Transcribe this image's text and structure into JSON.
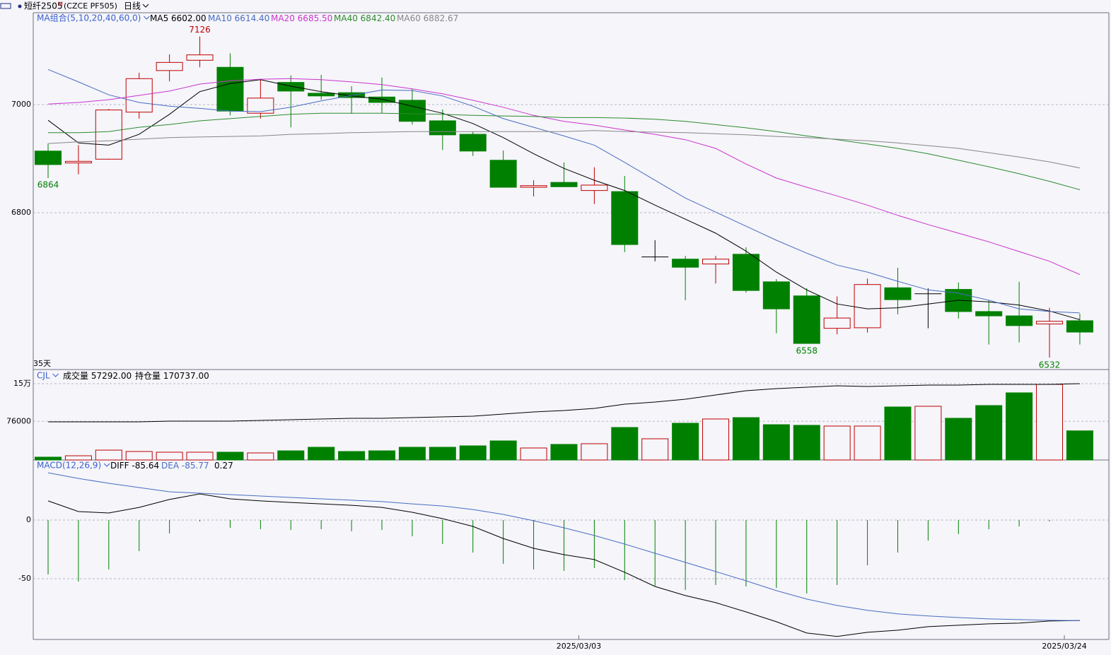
{
  "header": {
    "symbol": "短纤2505",
    "mark": "M",
    "code": "(CZCE PF505)",
    "period": "日线"
  },
  "chart_data": [
    {
      "type": "candlestick",
      "legend_title": "MA组合(5,10,20,40,60,0)",
      "period_label": "35天",
      "categories": [
        null,
        null,
        null,
        null,
        null,
        null,
        null,
        null,
        null,
        null,
        null,
        null,
        null,
        null,
        null,
        null,
        null,
        "2025/03/03",
        null,
        null,
        null,
        null,
        null,
        null,
        null,
        null,
        null,
        null,
        null,
        null,
        null,
        null,
        null,
        "2025/03/24",
        null
      ],
      "open": [
        6914,
        6892,
        6899,
        6986,
        7063,
        7082,
        7069,
        6984,
        7041,
        7021,
        7022,
        7014,
        7008,
        6970,
        6945,
        6897,
        6847,
        6856,
        6841,
        6839,
        6718,
        6714,
        6705,
        6723,
        6672,
        6646,
        6586,
        6587,
        6661,
        6650,
        6658,
        6617,
        6609,
        6594,
        6600
      ],
      "high": [
        6928,
        6925,
        6992,
        7059,
        7093,
        7126,
        7095,
        7047,
        7054,
        7055,
        7034,
        7050,
        7029,
        6991,
        6950,
        6915,
        6860,
        6893,
        6884,
        6868,
        6749,
        6720,
        6720,
        6736,
        6677,
        6660,
        6645,
        6678,
        6698,
        6660,
        6671,
        6638,
        6672,
        6624,
        6613
      ],
      "low": [
        6864,
        6871,
        6898,
        6974,
        7043,
        7069,
        6980,
        6974,
        6958,
        7009,
        6983,
        6984,
        6963,
        6916,
        6905,
        6847,
        6830,
        6848,
        6816,
        6727,
        6710,
        6638,
        6669,
        6652,
        6577,
        6558,
        6575,
        6578,
        6612,
        6586,
        6604,
        6556,
        6560,
        6532,
        6556
      ],
      "close": [
        6889,
        6895,
        6990,
        7048,
        7078,
        7092,
        6988,
        7012,
        7025,
        7016,
        7013,
        7004,
        6969,
        6944,
        6914,
        6847,
        6850,
        6848,
        6851,
        6741,
        6718,
        6699,
        6714,
        6656,
        6622,
        6558,
        6605,
        6667,
        6639,
        6650,
        6617,
        6609,
        6591,
        6599,
        6579
      ],
      "up_color": "#c00000",
      "down_color": "#008000",
      "flat_color": "#000000",
      "series": [
        {
          "name": "MA5",
          "last_label": "6602.00",
          "color": "#000000",
          "values": [
            6971,
            6929,
            6925,
            6945,
            6982,
            7024,
            7039,
            7046,
            7034,
            7024,
            7016,
            7010,
            6997,
            6984,
            6965,
            6939,
            6909,
            6882,
            6860,
            6841,
            6814,
            6788,
            6762,
            6729,
            6690,
            6657,
            6631,
            6622,
            6624,
            6631,
            6638,
            6635,
            6629,
            6618,
            6602
          ]
        },
        {
          "name": "MA10",
          "last_label": "6614.40",
          "color": "#4a6cc0",
          "values": [
            7065,
            7042,
            7018,
            7004,
            6997,
            6993,
            6988,
            6987,
            6995,
            7007,
            7017,
            7027,
            7026,
            7016,
            6997,
            6974,
            6958,
            6942,
            6925,
            6893,
            6860,
            6827,
            6801,
            6775,
            6749,
            6725,
            6703,
            6690,
            6673,
            6657,
            6651,
            6638,
            6622,
            6617,
            6614.4
          ]
        },
        {
          "name": "MA20",
          "last_label": "6685.50",
          "color": "#cc33cc",
          "values": [
            7001,
            7004,
            7009,
            7017,
            7025,
            7038,
            7044,
            7047,
            7048,
            7046,
            7042,
            7037,
            7029,
            7020,
            7008,
            6995,
            6980,
            6969,
            6962,
            6953,
            6945,
            6935,
            6919,
            6890,
            6864,
            6847,
            6831,
            6814,
            6795,
            6778,
            6762,
            6746,
            6728,
            6710,
            6685.5
          ]
        },
        {
          "name": "MA40",
          "last_label": "6842.40",
          "color": "#2e8b2e",
          "values": [
            6948,
            6948,
            6950,
            6958,
            6963,
            6970,
            6974,
            6978,
            6982,
            6984,
            6984,
            6984,
            6983,
            6982,
            6980,
            6979,
            6978,
            6976,
            6976,
            6975,
            6973,
            6969,
            6963,
            6957,
            6950,
            6942,
            6935,
            6927,
            6919,
            6909,
            6897,
            6885,
            6872,
            6858,
            6842.4
          ]
        },
        {
          "name": "MA60",
          "last_label": "6882.67",
          "color": "#888888",
          "values": [
            6928,
            6931,
            6933,
            6936,
            6939,
            6940,
            6941,
            6942,
            6945,
            6946,
            6948,
            6949,
            6950,
            6950,
            6950,
            6950,
            6950,
            6950,
            6952,
            6950,
            6949,
            6948,
            6946,
            6944,
            6941,
            6939,
            6936,
            6933,
            6929,
            6924,
            6919,
            6911,
            6903,
            6894,
            6882.67
          ]
        }
      ],
      "ylim": [
        6511,
        7170
      ],
      "yticks": [
        6800,
        7000
      ],
      "grid": true
    },
    {
      "type": "bar",
      "legend_title": "CJL",
      "series": [
        {
          "name": "成交量",
          "last_label": "57292.00",
          "type": "bar",
          "color": "#000000",
          "values": [
            5600,
            8300,
            19400,
            16700,
            15300,
            15300,
            15300,
            13900,
            18000,
            25000,
            16700,
            18000,
            25000,
            25000,
            27800,
            37500,
            23600,
            30600,
            32000,
            63900,
            41700,
            72200,
            80600,
            83300,
            69400,
            68100,
            66700,
            66700,
            104200,
            105600,
            82000,
            107000,
            132000,
            148600,
            57292
          ]
        },
        {
          "name": "持仓量",
          "last_label": "170737.00",
          "axis": "y2",
          "color": "#000000",
          "values": [
            85370,
            85370,
            85370,
            85370,
            86960,
            86960,
            86960,
            88540,
            90120,
            91700,
            93280,
            93280,
            94860,
            96440,
            98020,
            102770,
            107510,
            110670,
            115410,
            124900,
            129640,
            135970,
            145450,
            154940,
            159680,
            162840,
            166010,
            164420,
            166010,
            167590,
            167590,
            169170,
            169170,
            169170,
            170737
          ]
        }
      ],
      "ylim": [
        0,
        175000
      ],
      "yticks": [
        76000,
        {
          "value": 150000,
          "label": "15万"
        }
      ],
      "y2lim": [
        0,
        199200
      ],
      "grid": true
    },
    {
      "type": "macd",
      "legend_title": "MACD(12,26,9)",
      "up_color": "#c00000",
      "down_color": "#008000",
      "series": [
        {
          "name": "DIFF",
          "last_label": "-85.64",
          "color": "#000000",
          "values": [
            16.3,
            7.2,
            6,
            10.8,
            17.5,
            22.3,
            18.1,
            16.3,
            15,
            13.8,
            12.6,
            10.8,
            6.6,
            1.2,
            -5.4,
            -15.7,
            -24.1,
            -29.5,
            -33.7,
            -44.5,
            -56.6,
            -64.4,
            -70.4,
            -78.3,
            -86.7,
            -96.3,
            -99.3,
            -95.7,
            -93.9,
            -90.9,
            -89.7,
            -88.5,
            -87.9,
            -86.1,
            -85.64
          ]
        },
        {
          "name": "DEA",
          "last_label": "-85.77",
          "color": "#4a6cc0",
          "values": [
            40.3,
            35.5,
            31.3,
            27.7,
            24.1,
            22.9,
            21.7,
            20.5,
            19.3,
            18.1,
            16.9,
            15.7,
            13.8,
            12,
            9,
            4.8,
            -0.6,
            -6.6,
            -13.2,
            -20.5,
            -28.3,
            -36.1,
            -43.9,
            -51.8,
            -60.2,
            -67.4,
            -72.8,
            -77,
            -80,
            -81.8,
            -83.1,
            -84.3,
            -84.9,
            -85.5,
            -85.77
          ]
        },
        {
          "last_label": "0.27",
          "type": "bar",
          "color": "#000000",
          "values": [
            -46.4,
            -52.4,
            -42.1,
            -26.5,
            -11.4,
            -1.2,
            -6.6,
            -7.8,
            -8.4,
            -7.8,
            -9.6,
            -8.4,
            -13.8,
            -20.5,
            -27.7,
            -37.3,
            -42.1,
            -43.3,
            -40.9,
            -51.2,
            -56,
            -59.6,
            -55.4,
            -56.6,
            -57.8,
            -62.6,
            -55.4,
            -38.5,
            -27.7,
            -17.5,
            -12,
            -7.8,
            -5.4,
            -1.2,
            0.27
          ]
        }
      ],
      "ylim": [
        -101.8,
        50.6
      ],
      "yticks": [
        -50,
        0
      ],
      "grid": true
    }
  ]
}
